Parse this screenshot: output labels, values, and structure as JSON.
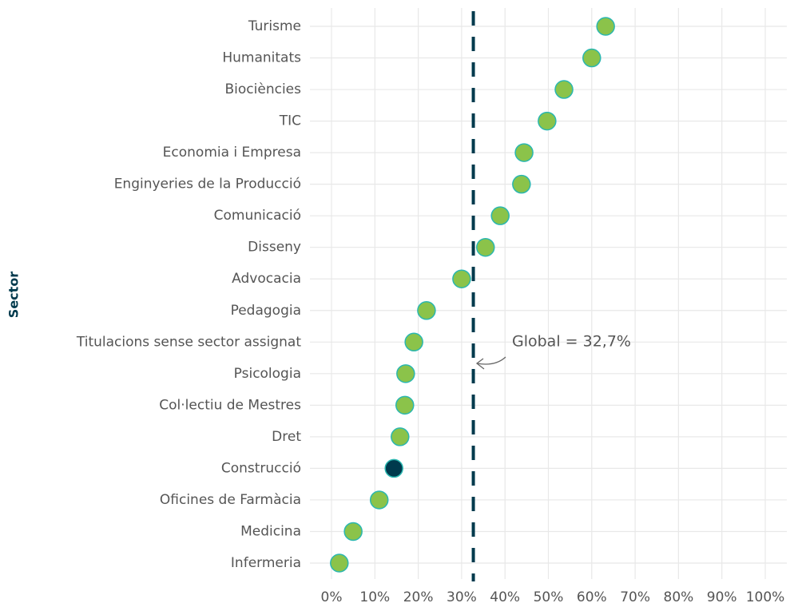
{
  "chart_data": {
    "type": "dot",
    "y_label": "Sector",
    "categories": [
      "Turisme",
      "Humanitats",
      "Biociències",
      "TIC",
      "Economia i Empresa",
      "Enginyeries de la Producció",
      "Comunicació",
      "Disseny",
      "Advocacia",
      "Pedagogia",
      "Titulacions sense sector assignat",
      "Psicologia",
      "Col·lectiu de Mestres",
      "Dret",
      "Construcció",
      "Oficines de Farmàcia",
      "Medicina",
      "Infermeria"
    ],
    "values": [
      63.2,
      60,
      53.6,
      49.7,
      44.4,
      43.8,
      38.9,
      35.5,
      30,
      21.9,
      19,
      17.1,
      16.9,
      15.8,
      14.4,
      11,
      5,
      1.8
    ],
    "colors": [
      "#8bc34a",
      "#8bc34a",
      "#8bc34a",
      "#8bc34a",
      "#8bc34a",
      "#8bc34a",
      "#8bc34a",
      "#8bc34a",
      "#8bc34a",
      "#8bc34a",
      "#8bc34a",
      "#8bc34a",
      "#8bc34a",
      "#8bc34a",
      "#003a4d",
      "#8bc34a",
      "#8bc34a",
      "#8bc34a"
    ],
    "marker_edge_color": "#2ab7b0",
    "xlim": [
      0,
      100
    ],
    "xticks": [
      {
        "value": 0,
        "label": "0%"
      },
      {
        "value": 10,
        "label": "10%"
      },
      {
        "value": 20,
        "label": "20%"
      },
      {
        "value": 30,
        "label": "30%"
      },
      {
        "value": 40,
        "label": "40%"
      },
      {
        "value": 50,
        "label": "50%"
      },
      {
        "value": 60,
        "label": "60%"
      },
      {
        "value": 70,
        "label": "70%"
      },
      {
        "value": 80,
        "label": "80%"
      },
      {
        "value": 90,
        "label": "90%"
      },
      {
        "value": 100,
        "label": "100%"
      }
    ],
    "reference_line": {
      "value": 32.7,
      "label": "Global = 32,7%",
      "color": "#003a4d"
    },
    "grid": true
  }
}
